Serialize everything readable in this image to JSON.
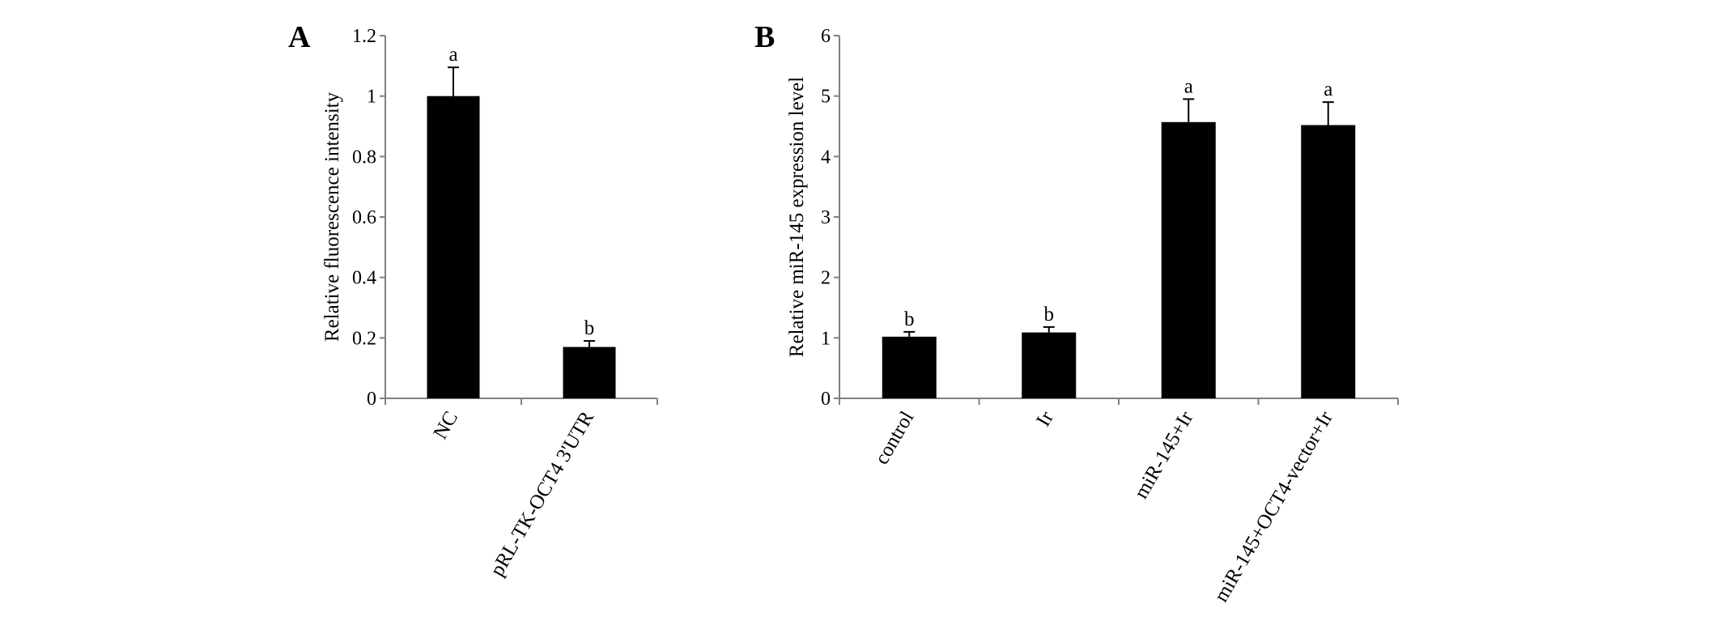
{
  "chart_data": [
    {
      "panel": "A",
      "type": "bar",
      "ylabel": "Relative fluorescence intensity",
      "ylim": [
        0,
        1.2
      ],
      "yticks": [
        "0",
        "0.2",
        "0.4",
        "0.6",
        "0.8",
        "1",
        "1.2"
      ],
      "categories": [
        "NC",
        "pRL-TK-OCT4 3'UTR"
      ],
      "values": [
        1.0,
        0.17
      ],
      "errors": [
        0.095,
        0.02
      ],
      "significance": [
        "a",
        "b"
      ],
      "bar_color": "#000000",
      "grid": false
    },
    {
      "panel": "B",
      "type": "bar",
      "ylabel": "Relative miR-145 expression level",
      "ylim": [
        0,
        6
      ],
      "yticks": [
        "0",
        "1",
        "2",
        "3",
        "4",
        "5",
        "6"
      ],
      "categories": [
        "control",
        "Ir",
        "miR-145+Ir",
        "miR-145+OCT4-vector+Ir"
      ],
      "values": [
        1.02,
        1.09,
        4.57,
        4.52
      ],
      "errors": [
        0.08,
        0.09,
        0.38,
        0.38
      ],
      "significance": [
        "b",
        "b",
        "a",
        "a"
      ],
      "bar_color": "#000000",
      "grid": false
    }
  ]
}
